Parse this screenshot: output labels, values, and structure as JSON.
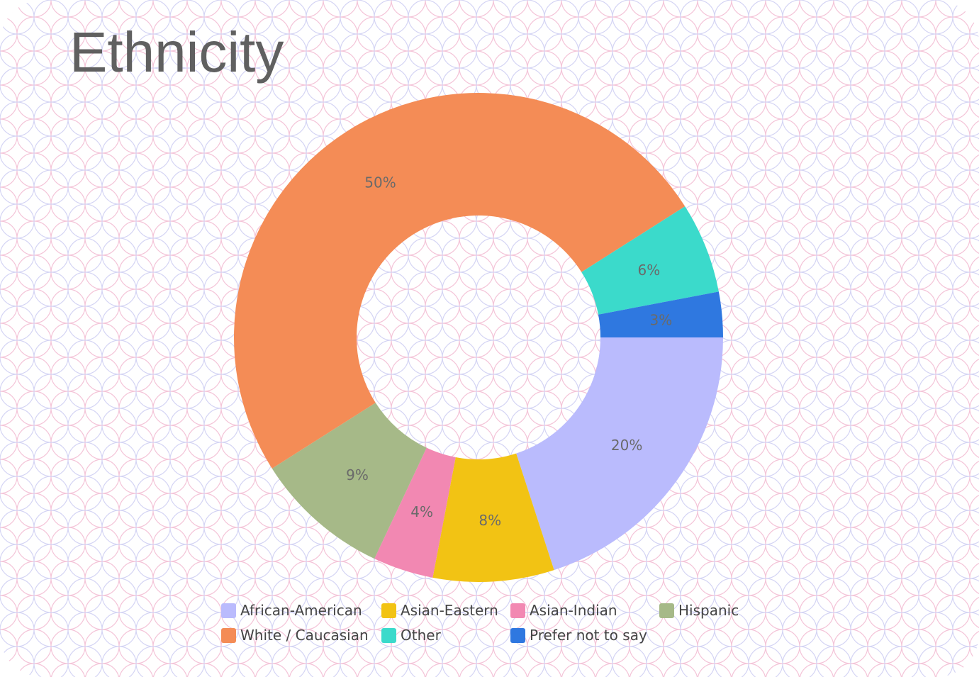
{
  "page": {
    "title": "Ethnicity"
  },
  "chart_data": {
    "type": "pie",
    "variant": "donut",
    "title": "Ethnicity",
    "slices": [
      {
        "label": "African-American",
        "value": 20,
        "display": "20%",
        "color": "#babbfd"
      },
      {
        "label": "Asian-Eastern",
        "value": 8,
        "display": "8%",
        "color": "#f2c314"
      },
      {
        "label": "Asian-Indian",
        "value": 4,
        "display": "4%",
        "color": "#f288b2"
      },
      {
        "label": "Hispanic",
        "value": 9,
        "display": "9%",
        "color": "#a6b988"
      },
      {
        "label": "White / Caucasian",
        "value": 50,
        "display": "50%",
        "color": "#f48c56"
      },
      {
        "label": "Other",
        "value": 6,
        "display": "6%",
        "color": "#3bdacb"
      },
      {
        "label": "Prefer not to say",
        "value": 3,
        "display": "3%",
        "color": "#2f78e0"
      }
    ],
    "legend": {
      "position": "bottom",
      "items": [
        {
          "label": "African-American",
          "color": "#babbfd"
        },
        {
          "label": "Asian-Eastern",
          "color": "#f2c314"
        },
        {
          "label": "Asian-Indian",
          "color": "#f288b2"
        },
        {
          "label": "Hispanic",
          "color": "#a6b988"
        },
        {
          "label": "White / Caucasian",
          "color": "#f48c56"
        },
        {
          "label": "Other",
          "color": "#3bdacb"
        },
        {
          "label": "Prefer not to say",
          "color": "#2f78e0"
        }
      ]
    },
    "start_direction": "east",
    "rotation": "clockwise"
  },
  "colors": {
    "title_text": "#606060",
    "label_text": "#6a6a6a",
    "pattern_pink": "#f4c4d8",
    "pattern_lavender": "#d4d4f4"
  }
}
